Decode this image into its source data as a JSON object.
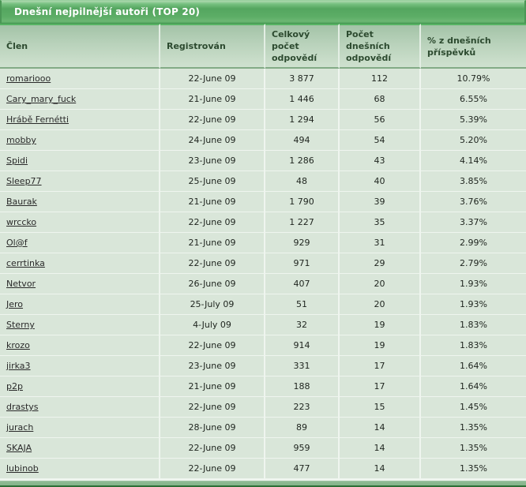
{
  "title_bar": {
    "title": "Dnešní nejpilnější autoři (TOP 20)"
  },
  "table": {
    "columns": [
      {
        "key": "member",
        "label": "Člen"
      },
      {
        "key": "registered",
        "label": "Registrován"
      },
      {
        "key": "total_replies",
        "label": "Celkový počet odpovědí"
      },
      {
        "key": "today_replies",
        "label": "Počet dnešních odpovědí"
      },
      {
        "key": "percent_today",
        "label": "% z dnešních příspěvků"
      }
    ],
    "rows": [
      {
        "member": "romariooo",
        "registered": "22-June 09",
        "total_replies": "3 877",
        "today_replies": "112",
        "percent_today": "10.79%"
      },
      {
        "member": "Cary_mary_fuck",
        "registered": "21-June 09",
        "total_replies": "1 446",
        "today_replies": "68",
        "percent_today": "6.55%"
      },
      {
        "member": "Hrábě Fernétti",
        "registered": "22-June 09",
        "total_replies": "1 294",
        "today_replies": "56",
        "percent_today": "5.39%"
      },
      {
        "member": "mobby",
        "registered": "24-June 09",
        "total_replies": "494",
        "today_replies": "54",
        "percent_today": "5.20%"
      },
      {
        "member": "Spidi",
        "registered": "23-June 09",
        "total_replies": "1 286",
        "today_replies": "43",
        "percent_today": "4.14%"
      },
      {
        "member": "Sleep77",
        "registered": "25-June 09",
        "total_replies": "48",
        "today_replies": "40",
        "percent_today": "3.85%"
      },
      {
        "member": "Baurak",
        "registered": "21-June 09",
        "total_replies": "1 790",
        "today_replies": "39",
        "percent_today": "3.76%"
      },
      {
        "member": "wrccko",
        "registered": "22-June 09",
        "total_replies": "1 227",
        "today_replies": "35",
        "percent_today": "3.37%"
      },
      {
        "member": "Ol@f",
        "registered": "21-June 09",
        "total_replies": "929",
        "today_replies": "31",
        "percent_today": "2.99%"
      },
      {
        "member": "cerrtinka",
        "registered": "22-June 09",
        "total_replies": "971",
        "today_replies": "29",
        "percent_today": "2.79%"
      },
      {
        "member": "Netvor",
        "registered": "26-June 09",
        "total_replies": "407",
        "today_replies": "20",
        "percent_today": "1.93%"
      },
      {
        "member": "Jero",
        "registered": "25-July 09",
        "total_replies": "51",
        "today_replies": "20",
        "percent_today": "1.93%"
      },
      {
        "member": "Sterny",
        "registered": "4-July 09",
        "total_replies": "32",
        "today_replies": "19",
        "percent_today": "1.83%"
      },
      {
        "member": "krozo",
        "registered": "22-June 09",
        "total_replies": "914",
        "today_replies": "19",
        "percent_today": "1.83%"
      },
      {
        "member": "jirka3",
        "registered": "23-June 09",
        "total_replies": "331",
        "today_replies": "17",
        "percent_today": "1.64%"
      },
      {
        "member": "p2p",
        "registered": "21-June 09",
        "total_replies": "188",
        "today_replies": "17",
        "percent_today": "1.64%"
      },
      {
        "member": "drastys",
        "registered": "22-June 09",
        "total_replies": "223",
        "today_replies": "15",
        "percent_today": "1.45%"
      },
      {
        "member": "jurach",
        "registered": "28-June 09",
        "total_replies": "89",
        "today_replies": "14",
        "percent_today": "1.35%"
      },
      {
        "member": "SKAJA",
        "registered": "22-June 09",
        "total_replies": "959",
        "today_replies": "14",
        "percent_today": "1.35%"
      },
      {
        "member": "lubinob",
        "registered": "22-June 09",
        "total_replies": "477",
        "today_replies": "14",
        "percent_today": "1.35%"
      }
    ]
  },
  "colors": {
    "title_bar_green": "#5cad66",
    "header_gradient_top": "#a3c3a7",
    "header_gradient_bottom": "#cfe1cf",
    "header_text": "#2c4a2f",
    "row_background": "#d9e6d9",
    "separator": "#eff5ef",
    "footer_green": "#8bb890",
    "link_text": "#2a2a2a"
  }
}
